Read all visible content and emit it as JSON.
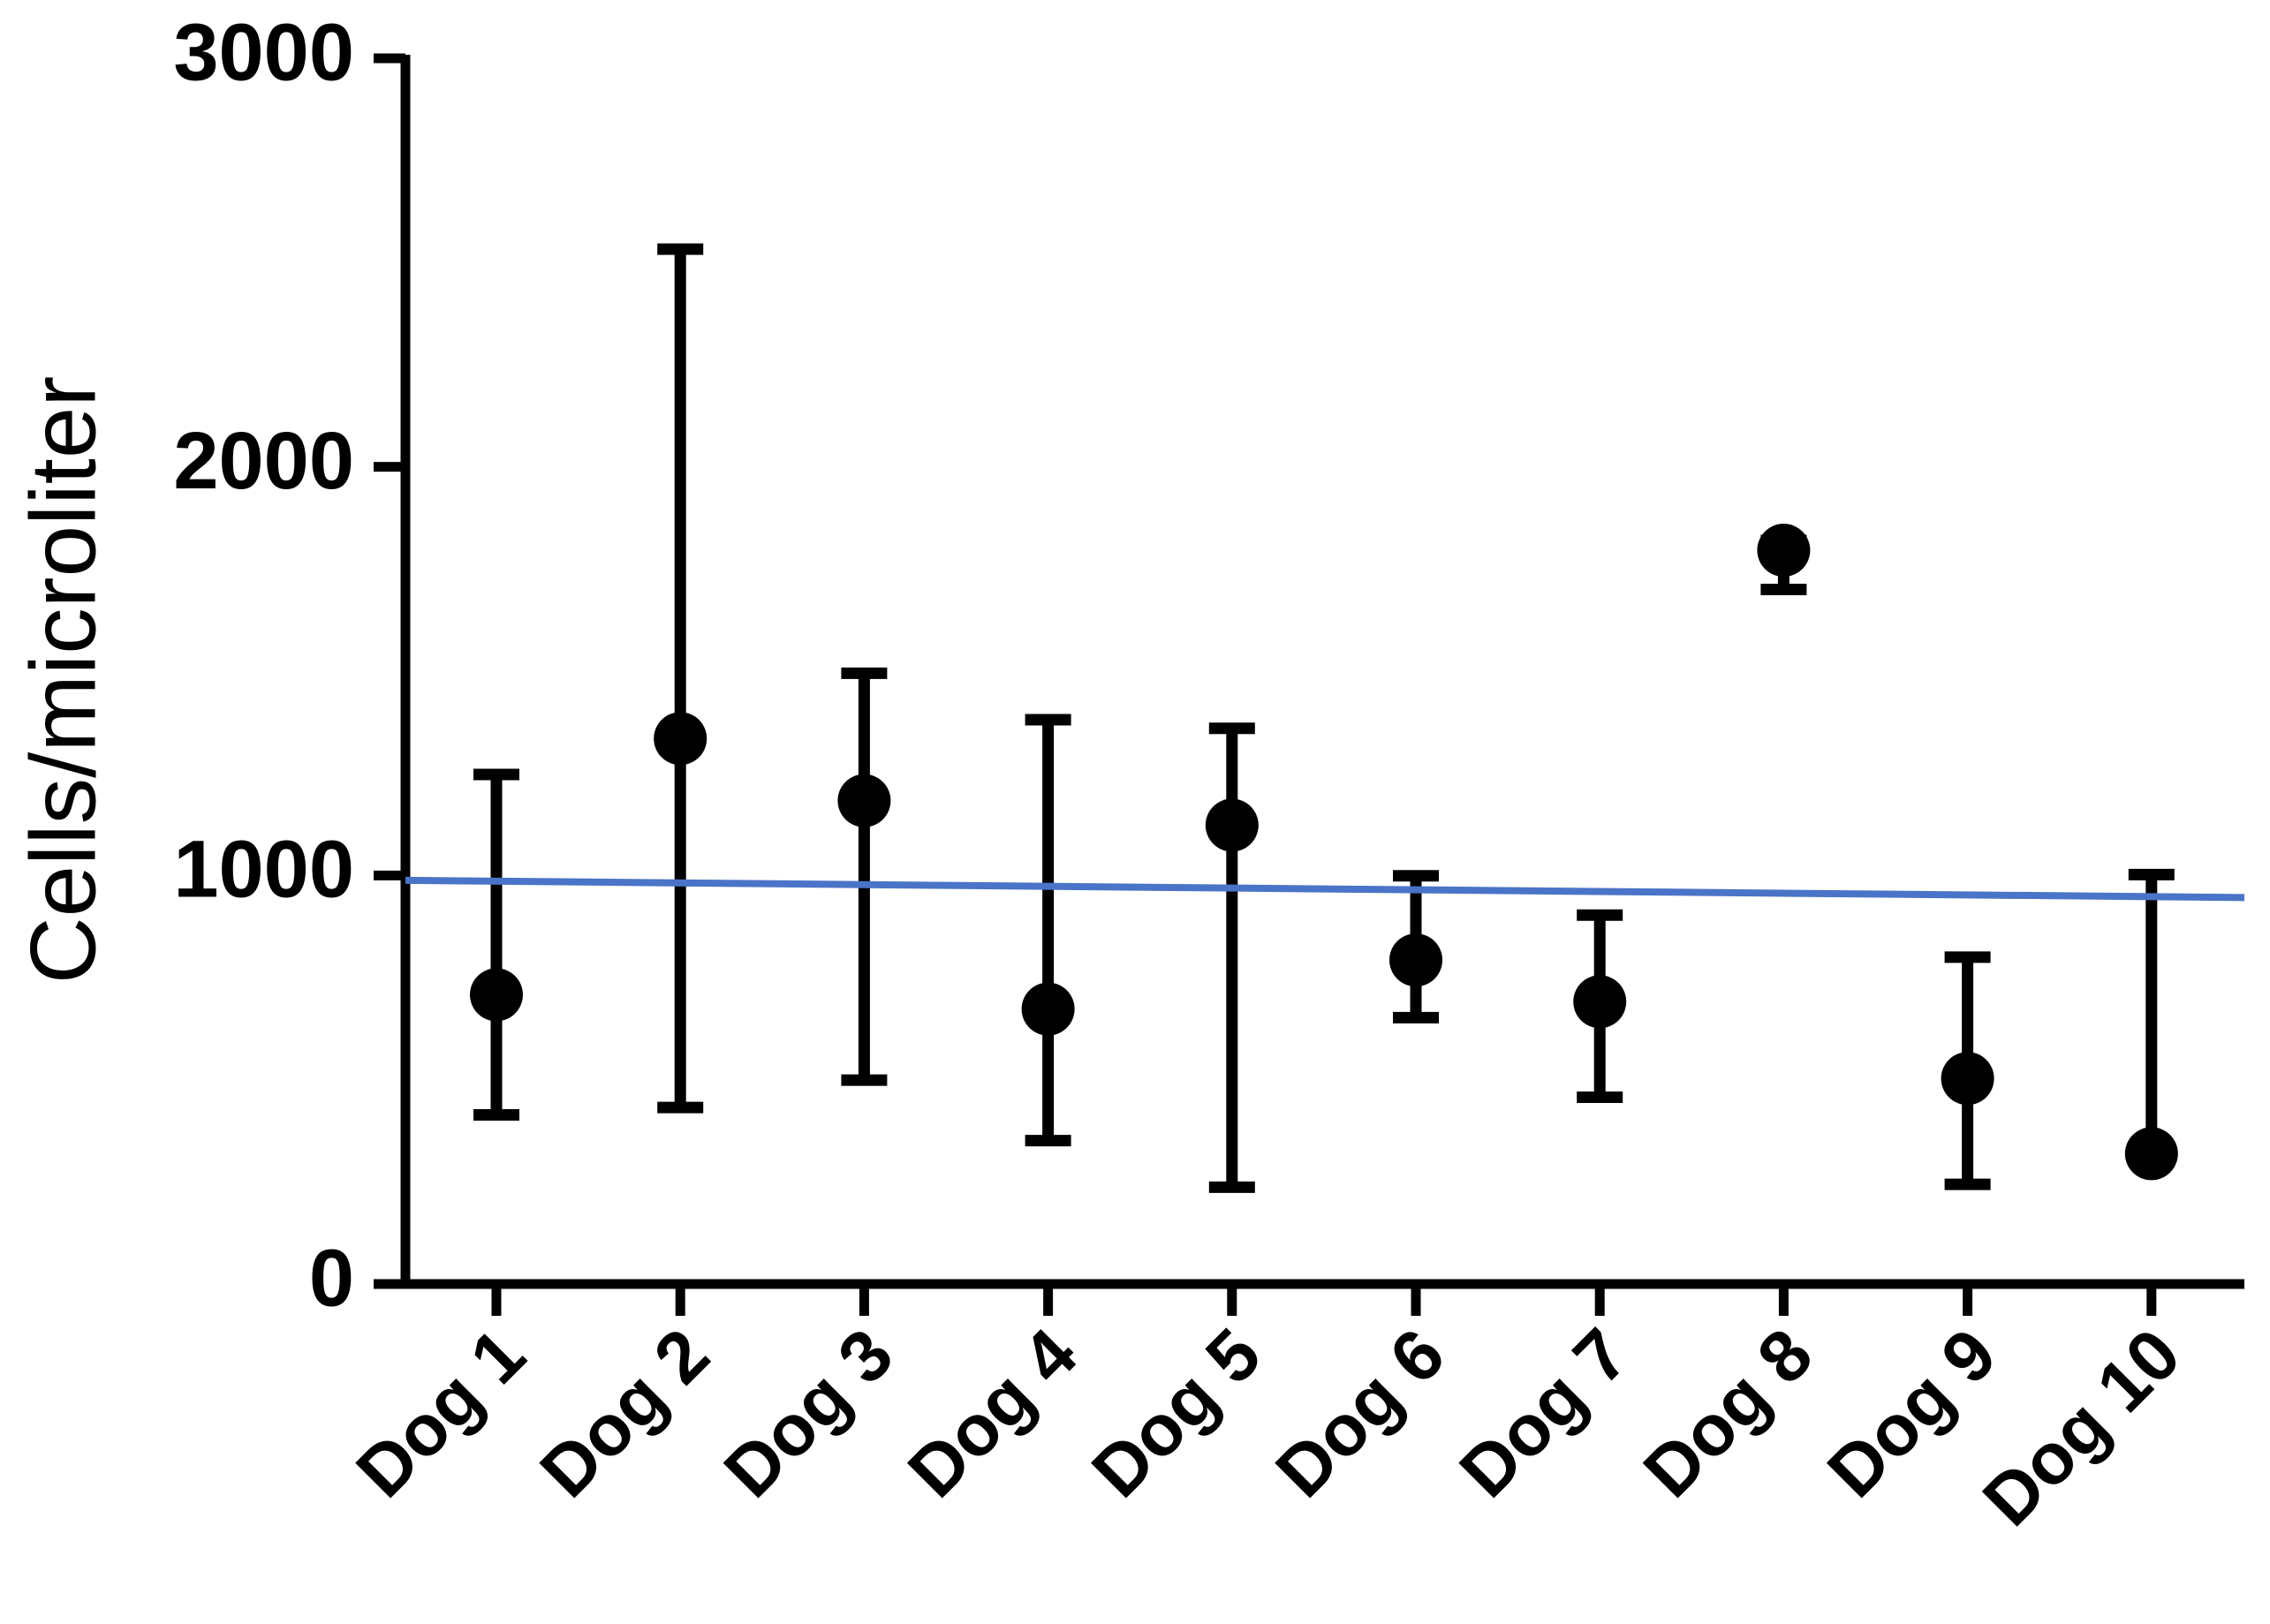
{
  "chart_data": {
    "type": "dot-range",
    "y_label": "Cells/microliter",
    "categories": [
      "Dog 1",
      "Dog 2",
      "Dog 3",
      "Dog 4",
      "Dog 5",
      "Dog 6",
      "Dog 7",
      "Dog 8",
      "Dog 9",
      "Dog 10"
    ],
    "series": [
      {
        "color": "#000000",
        "values": [
          708,
          1335,
          1183,
          673,
          1123,
          793,
          691,
          1796,
          503,
          319
        ],
        "low": [
          414,
          432,
          499,
          351,
          237,
          652,
          457,
          1700,
          244,
          300
        ],
        "high": [
          1247,
          2533,
          1495,
          1381,
          1360,
          999,
          903,
          1820,
          800,
          1002
        ]
      }
    ],
    "trend_line": {
      "color": "#4a74c8",
      "values": [
        988,
        946
      ]
    },
    "ylim": [
      0,
      3000
    ],
    "yticks": [
      0,
      1000,
      2000,
      3000
    ],
    "grid": false
  }
}
